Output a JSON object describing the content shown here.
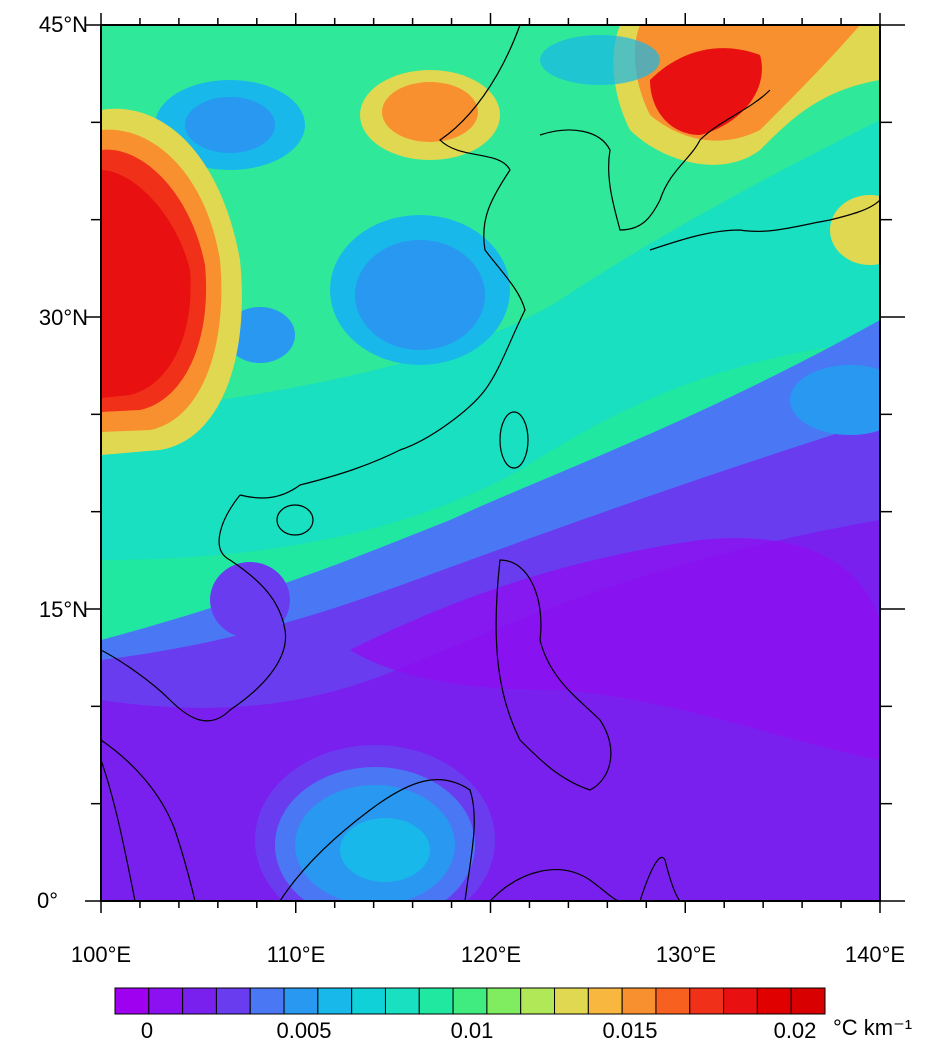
{
  "map": {
    "type": "contour",
    "lon_range": [
      "100E",
      "140E"
    ],
    "lat_range": [
      "0",
      "45N"
    ],
    "lat_labels": [
      "45°N",
      "30°N",
      "15°N",
      "0°"
    ],
    "lon_labels": [
      "100°E",
      "110°E",
      "120°E",
      "130°E",
      "140°E"
    ]
  },
  "colorbar": {
    "tick_labels": [
      "0",
      "0.005",
      "0.01",
      "0.015",
      "0.02"
    ],
    "unit": "°C km⁻¹",
    "colors": [
      "#a000f0",
      "#8c10f0",
      "#7a20ee",
      "#6a3cf0",
      "#4a78f5",
      "#2898f0",
      "#18b8ea",
      "#10d0d8",
      "#18e0c0",
      "#20e8a0",
      "#40ec80",
      "#80ec60",
      "#b0e858",
      "#e0d850",
      "#f8b840",
      "#f89030",
      "#f86020",
      "#f03018",
      "#e81010",
      "#e00000",
      "#d80000"
    ]
  },
  "colors": {
    "ocean_deep": "#7a20ee",
    "high": "#e81010",
    "mid": "#18e0c0"
  }
}
